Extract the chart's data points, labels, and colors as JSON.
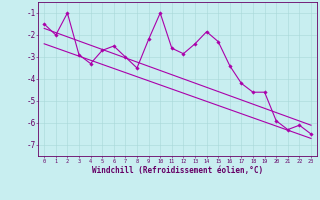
{
  "xlabel": "Windchill (Refroidissement éolien,°C)",
  "bg_color": "#c8eef0",
  "grid_color": "#a8d8d8",
  "line_color": "#aa00aa",
  "ylim": [
    -7.5,
    -0.5
  ],
  "xlim": [
    -0.5,
    23.5
  ],
  "x_ticks": [
    0,
    1,
    2,
    3,
    4,
    5,
    6,
    7,
    8,
    9,
    10,
    11,
    12,
    13,
    14,
    15,
    16,
    17,
    18,
    19,
    20,
    21,
    22,
    23
  ],
  "y_ticks": [
    -7,
    -6,
    -5,
    -4,
    -3,
    -2,
    -1
  ],
  "trend1_x": [
    0,
    23
  ],
  "trend1_y": [
    -1.7,
    -6.1
  ],
  "trend2_x": [
    0,
    23
  ],
  "trend2_y": [
    -2.4,
    -6.7
  ],
  "actual_x": [
    0,
    1,
    2,
    3,
    4,
    5,
    6,
    7,
    8,
    9,
    10,
    11,
    12,
    13,
    14,
    15,
    16,
    17,
    18,
    19,
    20,
    21,
    22,
    23
  ],
  "actual_y": [
    -1.5,
    -2.0,
    -1.0,
    -2.9,
    -3.3,
    -2.7,
    -2.5,
    -3.0,
    -3.5,
    -2.2,
    -1.0,
    -2.6,
    -2.85,
    -2.4,
    -1.85,
    -2.3,
    -3.4,
    -4.2,
    -4.6,
    -4.6,
    -5.9,
    -6.3,
    -6.1,
    -6.5
  ]
}
